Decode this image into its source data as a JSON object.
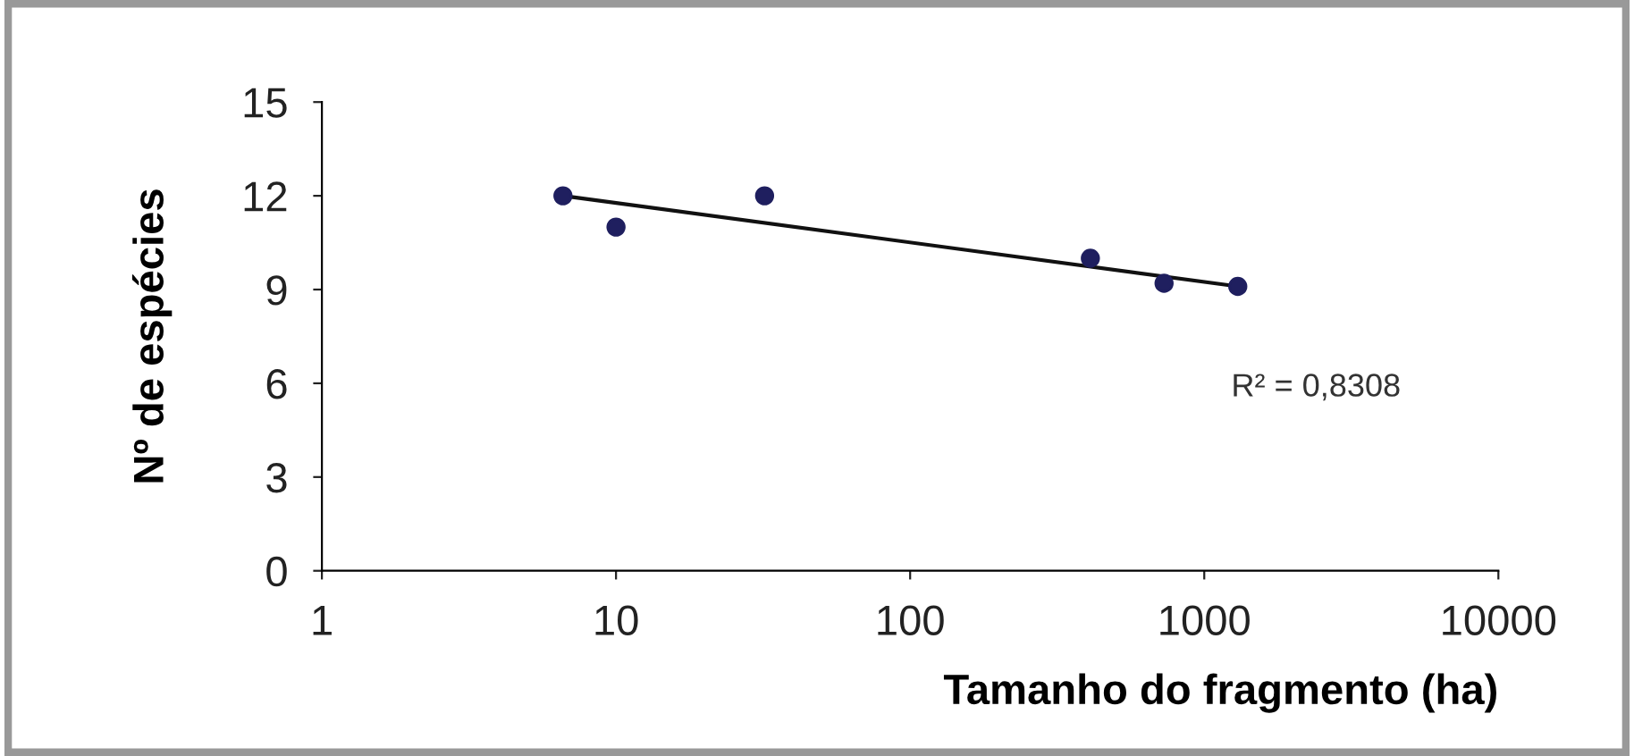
{
  "chart_data": {
    "type": "scatter",
    "xlabel": "Tamanho do fragmento (ha)",
    "ylabel": "Nº de espécies",
    "log": "x",
    "xlim": [
      1,
      10000
    ],
    "xticks": [
      1,
      10,
      100,
      1000,
      10000
    ],
    "ylim": [
      0,
      15
    ],
    "yticks": [
      0,
      3,
      6,
      9,
      12,
      15
    ],
    "grid": false,
    "annotations": [
      "R² = 0,8308"
    ],
    "series": [
      {
        "color": "#1f1f5f",
        "marker": "circle",
        "x": [
          6.6,
          10,
          32,
          410,
          730,
          1300
        ],
        "values": [
          12,
          11,
          12,
          10,
          9.2,
          9.1
        ]
      },
      {
        "type": "line",
        "color": "#111111",
        "marker": "none",
        "x": [
          6.6,
          1300
        ],
        "values": [
          12.0,
          9.1
        ]
      }
    ]
  }
}
